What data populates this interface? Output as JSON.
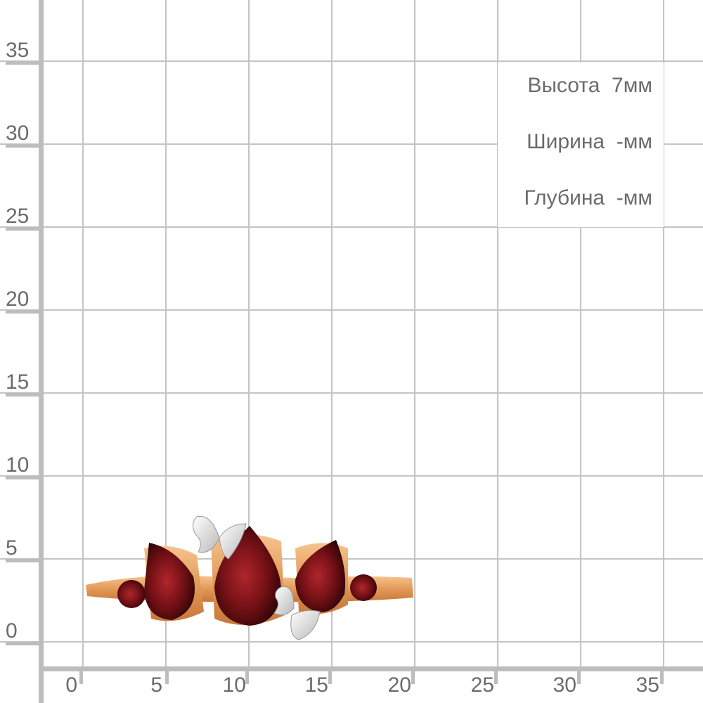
{
  "y_axis_labels": [
    "35",
    "30",
    "25",
    "20",
    "15",
    "10",
    "5",
    "0"
  ],
  "x_axis_labels": [
    "0",
    "5",
    "10",
    "15",
    "20",
    "25",
    "30",
    "35"
  ],
  "dimensions": {
    "height": "Высота  7мм",
    "width": "Ширина  -мм",
    "depth": "Глубина  -мм"
  },
  "colors": {
    "grid": "#c4c4c4",
    "gold": "#e8a060",
    "garnet": "#6e0f14",
    "silver": "#e6e6e6",
    "text": "#6b6b6b"
  }
}
